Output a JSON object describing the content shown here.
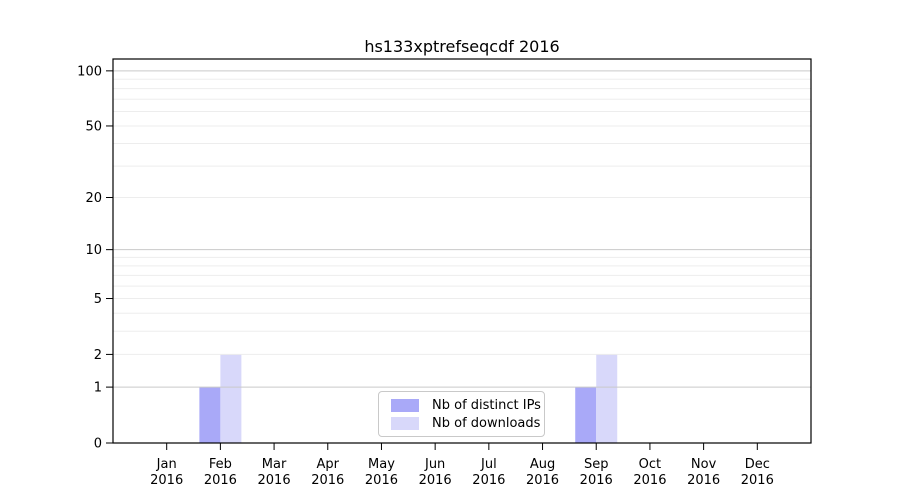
{
  "window": {
    "background": "#ffffff"
  },
  "chart_data": {
    "type": "bar",
    "title": "hs133xptrefseqcdf 2016",
    "categories": [
      "Jan",
      "Feb",
      "Mar",
      "Apr",
      "May",
      "Jun",
      "Jul",
      "Aug",
      "Sep",
      "Oct",
      "Nov",
      "Dec"
    ],
    "xtick_year": "2016",
    "series": [
      {
        "name": "Nb of distinct IPs",
        "color": "#a9a9f8",
        "values": [
          0,
          1,
          0,
          0,
          0,
          0,
          0,
          0,
          1,
          0,
          0,
          0
        ]
      },
      {
        "name": "Nb of downloads",
        "color": "#d8d8fa",
        "values": [
          0,
          2,
          0,
          0,
          0,
          0,
          0,
          0,
          2,
          0,
          0,
          0
        ]
      }
    ],
    "xlabel": "",
    "ylabel": "",
    "yscale": "log1p",
    "ylim": [
      0,
      116
    ],
    "ytick_values": [
      0,
      1,
      2,
      5,
      10,
      20,
      50,
      100
    ],
    "minor_gridlines": [
      2,
      3,
      4,
      5,
      6,
      7,
      8,
      9,
      20,
      30,
      40,
      50,
      60,
      70,
      80,
      90
    ],
    "major_gridlines": [
      1,
      10,
      100
    ],
    "grid": true,
    "legend_position": "lower center inside",
    "colors": {
      "axis": "#000000",
      "grid_minor": "#ededed",
      "grid_major": "#c9c9c9",
      "text": "#000000"
    }
  },
  "legend": {
    "items": [
      {
        "label": "Nb of distinct IPs",
        "color": "#a9a9f8"
      },
      {
        "label": "Nb of downloads",
        "color": "#d8d8fa"
      }
    ]
  }
}
